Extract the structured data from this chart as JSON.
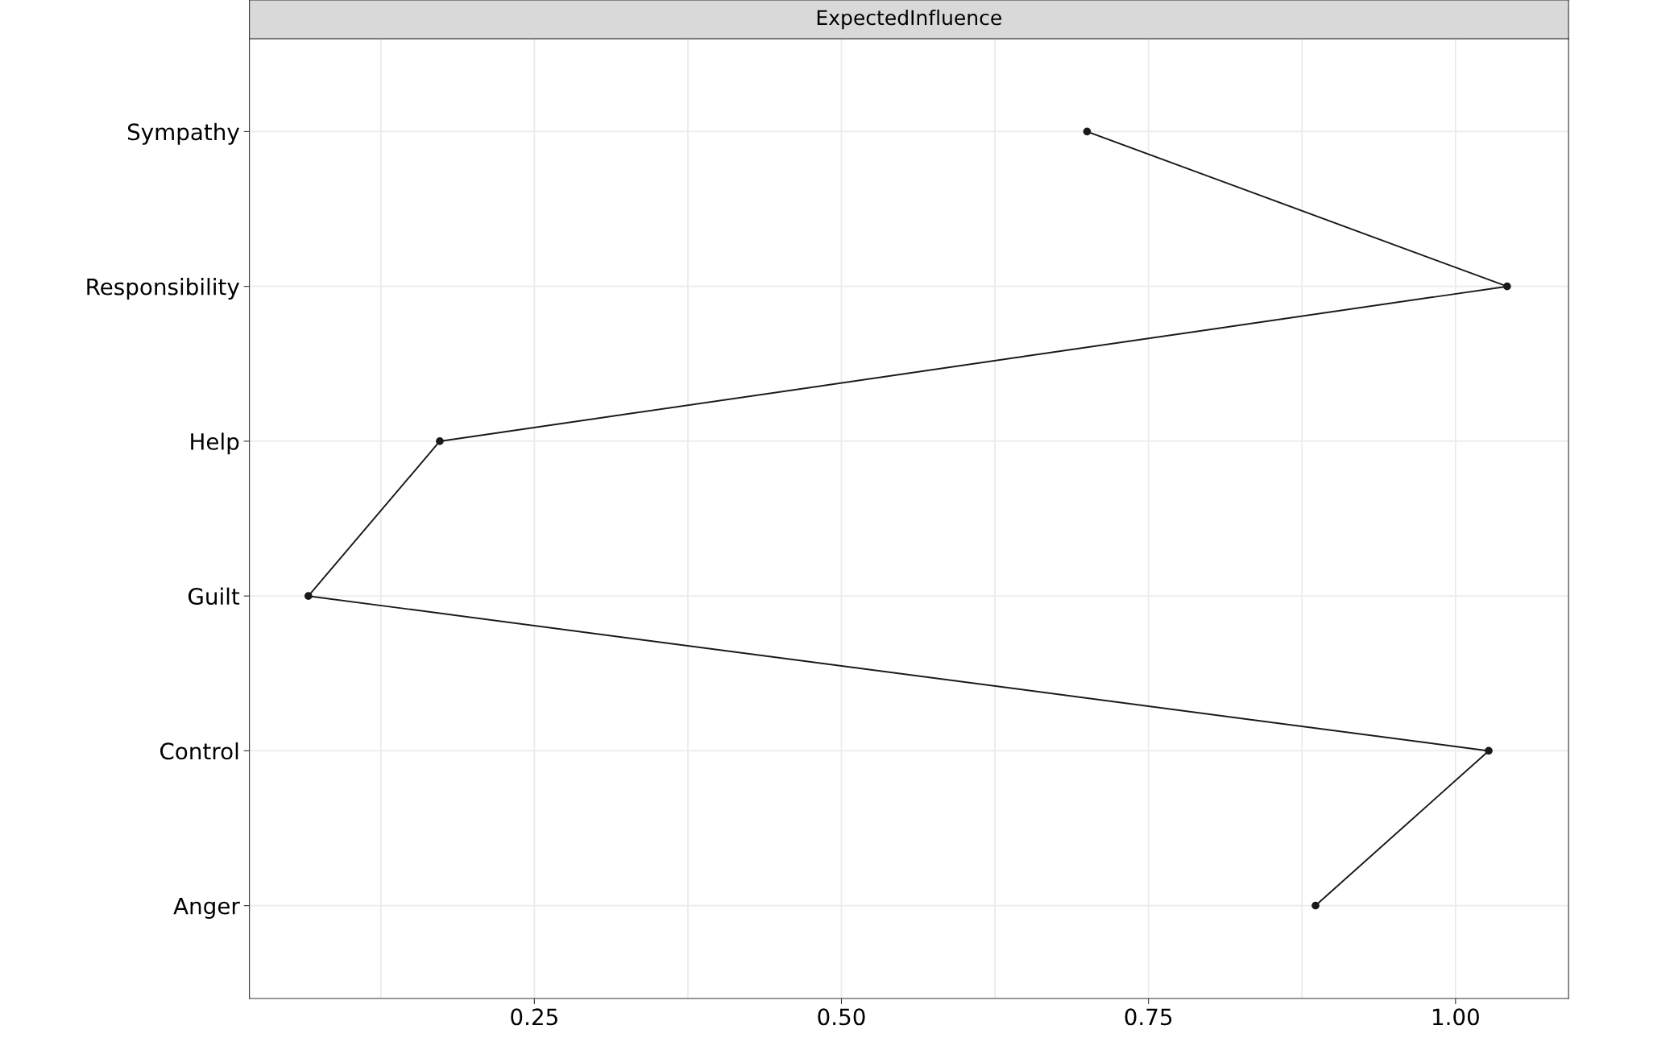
{
  "chart_data": {
    "type": "line",
    "orientation": "horizontal",
    "title": "ExpectedInfluence",
    "categories": [
      "Sympathy",
      "Responsibility",
      "Help",
      "Guilt",
      "Control",
      "Anger"
    ],
    "values": [
      0.7,
      1.042,
      0.173,
      0.066,
      1.027,
      0.886
    ],
    "color": "#1a1a1a",
    "marker": "circle",
    "line_style": "solid",
    "xlim": [
      0.018,
      1.092
    ],
    "xticks": [
      0.25,
      {
        "value": 0.5,
        "label": "0.50"
      },
      0.75,
      {
        "value": 1.0,
        "label": "1.00"
      }
    ],
    "grid": true,
    "legend": false
  }
}
